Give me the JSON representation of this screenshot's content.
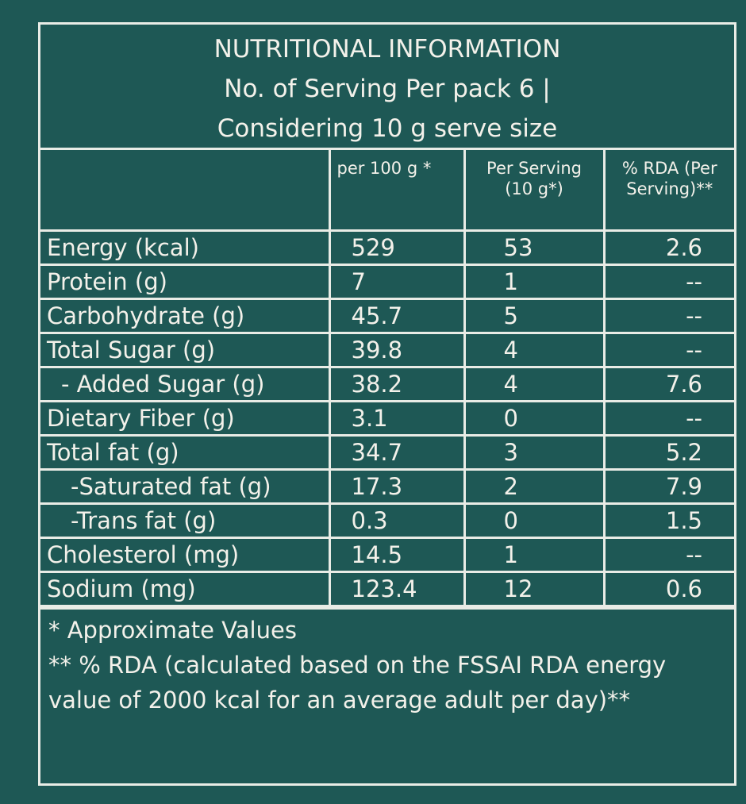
{
  "header": {
    "title": "NUTRITIONAL INFORMATION",
    "line2": "No. of Serving Per pack 6 |",
    "line3": "Considering 10 g serve size"
  },
  "table": {
    "columns": [
      "per 100 g *",
      "Per Serving (10 g*)",
      "% RDA (Per Serving)**"
    ],
    "rows": [
      [
        "Energy (kcal)",
        "529",
        "53",
        "2.6"
      ],
      [
        "Protein (g)",
        "7",
        "1",
        "--"
      ],
      [
        "Carbohydrate  (g)",
        "45.7",
        "5",
        "--"
      ],
      [
        "Total Sugar (g)",
        "39.8",
        "4",
        "--"
      ],
      [
        "- Added Sugar (g)",
        "38.2",
        "4",
        "7.6"
      ],
      [
        "Dietary Fiber (g)",
        "3.1",
        "0",
        "--"
      ],
      [
        "Total fat (g)",
        "34.7",
        "3",
        "5.2"
      ],
      [
        "-Saturated fat (g)",
        "17.3",
        "2",
        "7.9"
      ],
      [
        "-Trans fat (g)",
        "0.3",
        "0",
        "1.5"
      ],
      [
        "Cholesterol (mg)",
        "14.5",
        "1",
        "--"
      ],
      [
        "Sodium (mg)",
        "123.4",
        "12",
        "0.6"
      ]
    ]
  },
  "footnotes": [
    "* Approximate Values",
    "** % RDA (calculated based on the FSSAI RDA energy value of 2000 kcal for an average adult per day)**"
  ]
}
